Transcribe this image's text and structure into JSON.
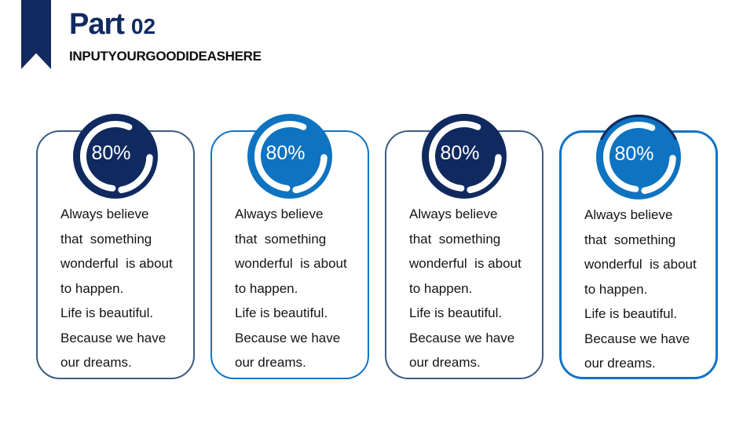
{
  "header": {
    "part_label": "Part",
    "part_number": "02",
    "subtitle": "INPUTYOURGOODIDEASHERE"
  },
  "colors": {
    "navy": "#102a60",
    "blue": "#0e73c0",
    "border_slate": "#3e5c82",
    "border_blue": "#1173c6",
    "ring_white": "#ffffff",
    "text_black": "#141414"
  },
  "body_lines": [
    "Always believe",
    "that  something",
    "wonderful  is about",
    "to happen.",
    "Life is beautiful.",
    "Because we have",
    "our dreams."
  ],
  "cards": [
    {
      "percent": "80%",
      "circle_color": "navy",
      "border_color": "slate",
      "border_width": 2,
      "top_arc": false
    },
    {
      "percent": "80%",
      "circle_color": "blue",
      "border_color": "blue",
      "border_width": 2,
      "top_arc": false
    },
    {
      "percent": "80%",
      "circle_color": "navy",
      "border_color": "slate",
      "border_width": 2,
      "top_arc": false
    },
    {
      "percent": "80%",
      "circle_color": "blue",
      "border_color": "blue",
      "border_width": 3,
      "top_arc": true
    }
  ]
}
